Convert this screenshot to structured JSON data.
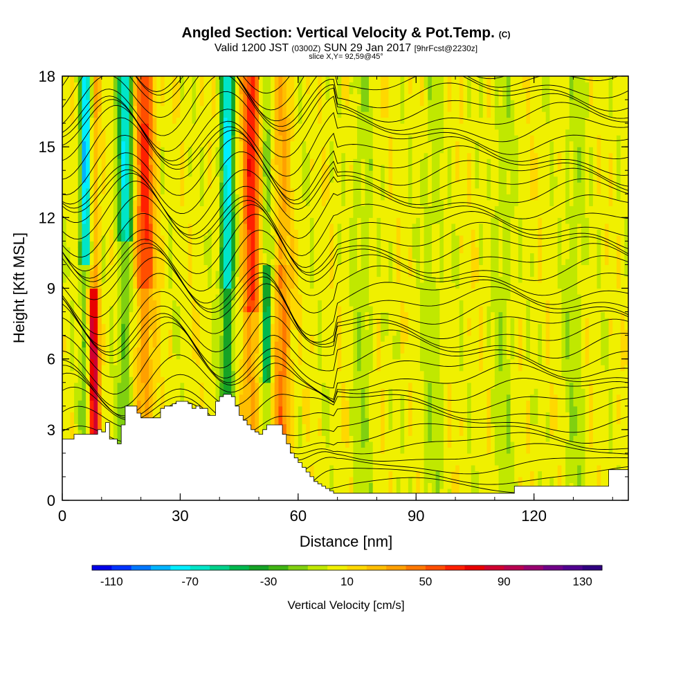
{
  "titles": {
    "main": "Angled Section: Vertical Velocity & Pot.Temp.",
    "main_tag": "(C)",
    "valid_prefix": "Valid 1200 JST",
    "valid_zulu": "(0300Z)",
    "valid_date": "SUN 29 Jan 2017",
    "forecast": "[9hrFcst@2230z]",
    "slice": "slice X,Y= 92,59@45°"
  },
  "colorbar": {
    "label": "Vertical Velocity [cm/s]",
    "tick_labels": [
      "-110",
      "-70",
      "-30",
      "10",
      "50",
      "90",
      "130"
    ],
    "tick_values": [
      -110,
      -70,
      -30,
      10,
      50,
      90,
      130
    ],
    "min": -120,
    "max": 140,
    "step": 10,
    "colors": [
      "#0000e8",
      "#0033ff",
      "#0077ff",
      "#00b4ff",
      "#00eeff",
      "#00e5c8",
      "#00d18a",
      "#00b84e",
      "#15a326",
      "#40b414",
      "#80d010",
      "#c0e800",
      "#f0f000",
      "#ffd800",
      "#ffbe00",
      "#ffa000",
      "#ff7800",
      "#ff4e00",
      "#ff2000",
      "#e80000",
      "#d00030",
      "#b80050",
      "#980070",
      "#700088",
      "#500090",
      "#300080"
    ]
  },
  "chart_data": {
    "type": "heatmap",
    "title": "Angled Section: Vertical Velocity & Pot.Temp.",
    "xlabel": "Distance [nm]",
    "ylabel": "Height [Kft MSL]",
    "xlim": [
      0,
      144
    ],
    "ylim": [
      0,
      18
    ],
    "x_ticks": [
      "0",
      "30",
      "60",
      "90",
      "120"
    ],
    "x_tick_values": [
      0,
      30,
      60,
      90,
      120
    ],
    "y_ticks": [
      "0",
      "3",
      "6",
      "9",
      "12",
      "15",
      "18"
    ],
    "y_tick_values": [
      0,
      3,
      6,
      9,
      12,
      15,
      18
    ],
    "fill_variable": "Vertical Velocity [cm/s]",
    "contour_variable": "Pot.Temp.",
    "terrain_profile": {
      "x": [
        0,
        2,
        3,
        5,
        8,
        9,
        10,
        11,
        12,
        13,
        14,
        15,
        16,
        17,
        19,
        20,
        22,
        23,
        24,
        25,
        26,
        28,
        29,
        31,
        32,
        33,
        34,
        35,
        36,
        37,
        39,
        40,
        41,
        42,
        43,
        44,
        45,
        46,
        47,
        48,
        49,
        50,
        51,
        52,
        54,
        56,
        57,
        58,
        59,
        60,
        61,
        62,
        63,
        64,
        65,
        66,
        67,
        68,
        69,
        70,
        100,
        114,
        115,
        119,
        120,
        124,
        125,
        129,
        130,
        131,
        132,
        133,
        134,
        136,
        137,
        138,
        139,
        140,
        141,
        142,
        144
      ],
      "height": [
        2.6,
        2.6,
        2.8,
        2.8,
        2.8,
        3.0,
        2.9,
        3.3,
        2.6,
        2.6,
        2.4,
        3.2,
        4.0,
        4.0,
        3.7,
        3.5,
        3.5,
        3.5,
        3.5,
        3.9,
        4.0,
        4.1,
        4.2,
        4.2,
        4.1,
        3.9,
        4.0,
        3.9,
        3.9,
        3.6,
        4.2,
        4.4,
        4.5,
        4.5,
        4.4,
        4.0,
        3.6,
        3.4,
        3.2,
        3.0,
        2.9,
        2.8,
        3.0,
        3.2,
        3.2,
        2.8,
        2.4,
        2.0,
        1.8,
        1.6,
        1.4,
        1.2,
        1.0,
        0.8,
        0.7,
        0.6,
        0.5,
        0.4,
        0.3,
        0.3,
        0.3,
        0.3,
        0.6,
        0.6,
        0.6,
        0.6,
        0.6,
        0.6,
        0.6,
        0.6,
        0.6,
        0.6,
        0.6,
        0.6,
        0.6,
        0.6,
        1.3,
        1.3,
        1.3,
        1.3,
        1.3
      ]
    },
    "updraft_columns_x": [
      8,
      21,
      48,
      56
    ],
    "downdraft_columns_x": [
      6,
      16,
      42,
      52
    ],
    "isentrope_levels_count": 40
  }
}
